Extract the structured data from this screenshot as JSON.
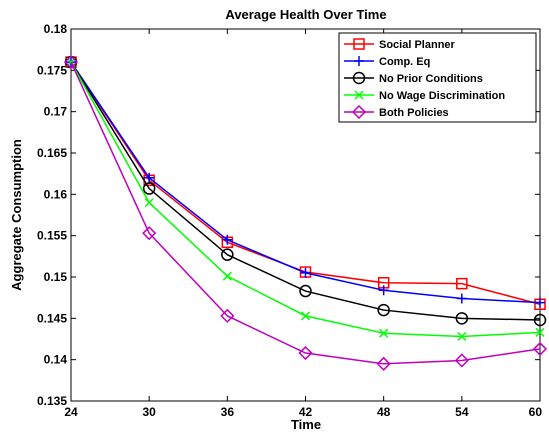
{
  "chart_data": {
    "type": "line",
    "title": "Average Health Over Time",
    "xlabel": "Time",
    "ylabel": "Aggregate Consumption",
    "x": [
      24,
      30,
      36,
      42,
      48,
      54,
      60
    ],
    "xlim": [
      24,
      60
    ],
    "ylim": [
      0.135,
      0.18
    ],
    "xticks": [
      "24",
      "30",
      "36",
      "42",
      "48",
      "54",
      "60"
    ],
    "yticks": [
      "0.135",
      "0.14",
      "0.145",
      "0.15",
      "0.155",
      "0.16",
      "0.165",
      "0.17",
      "0.175",
      "0.18"
    ],
    "grid": false,
    "legend_position": "top-right",
    "series": [
      {
        "name": "Social Planner",
        "color": "#ff0000",
        "marker": "square",
        "values": [
          0.176,
          0.1617,
          0.1542,
          0.1506,
          0.1493,
          0.1492,
          0.1467
        ]
      },
      {
        "name": "Comp. Eq",
        "color": "#0000ff",
        "marker": "plus",
        "values": [
          0.176,
          0.162,
          0.1545,
          0.1505,
          0.1484,
          0.1474,
          0.1469
        ]
      },
      {
        "name": "No Prior Conditions",
        "color": "#000000",
        "marker": "circle",
        "values": [
          0.176,
          0.1607,
          0.1527,
          0.1483,
          0.146,
          0.145,
          0.1448
        ]
      },
      {
        "name": "No Wage Discrimination",
        "color": "#00ff00",
        "marker": "x",
        "values": [
          0.176,
          0.159,
          0.1501,
          0.1453,
          0.1432,
          0.1428,
          0.1433
        ]
      },
      {
        "name": "Both Policies",
        "color": "#bf00bf",
        "marker": "diamond",
        "values": [
          0.176,
          0.1553,
          0.1453,
          0.1408,
          0.1395,
          0.1399,
          0.1413
        ]
      }
    ]
  }
}
